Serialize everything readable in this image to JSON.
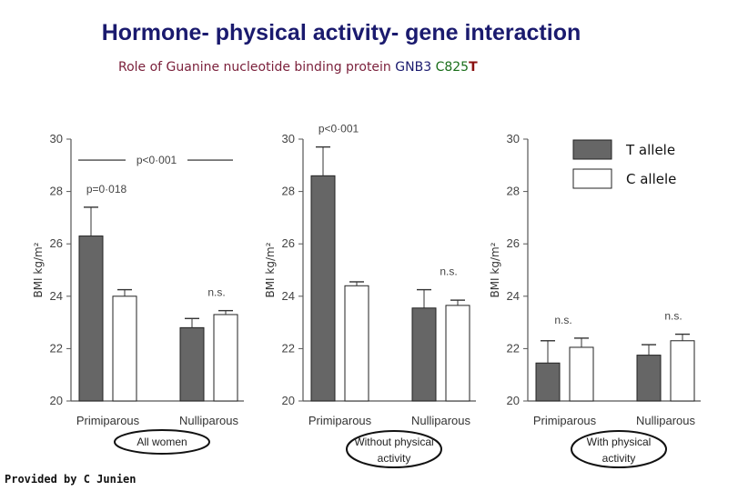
{
  "header": {
    "title": "Hormone- physical activity- gene interaction",
    "subtitle_part1": "Role of Guanine nucleotide binding protein",
    "subtitle_part2": "GNB3",
    "subtitle_part3": "C825",
    "subtitle_part4": "T"
  },
  "credit": "Provided by C Junien",
  "colors": {
    "t_allele": "#666666",
    "c_allele": "#ffffff",
    "outline": "#222222"
  },
  "legend": {
    "placement": "top-right",
    "items": [
      "T allele",
      "C allele"
    ]
  },
  "chart_data": [
    {
      "type": "bar",
      "ylabel": "BMI kg/m²",
      "ylim": [
        20,
        30
      ],
      "yticks": [
        20,
        22,
        24,
        26,
        28,
        30
      ],
      "categories": [
        "Primiparous",
        "Nulliparous"
      ],
      "group_label": "All women",
      "series": [
        {
          "name": "T allele",
          "values": [
            26.3,
            22.8
          ],
          "errors": [
            1.1,
            0.35
          ]
        },
        {
          "name": "C allele",
          "values": [
            24.0,
            23.3
          ],
          "errors": [
            0.25,
            0.15
          ]
        }
      ],
      "annotations": [
        {
          "text": "p<0·001",
          "type": "bracket"
        },
        {
          "text": "p=0·018",
          "category": 0
        },
        {
          "text": "n.s.",
          "category": 1
        }
      ]
    },
    {
      "type": "bar",
      "ylabel": "BMI kg/m²",
      "ylim": [
        20,
        30
      ],
      "yticks": [
        20,
        22,
        24,
        26,
        28,
        30
      ],
      "categories": [
        "Primiparous",
        "Nulliparous"
      ],
      "group_label": "Without physical activity",
      "series": [
        {
          "name": "T allele",
          "values": [
            28.6,
            23.55
          ],
          "errors": [
            1.1,
            0.7
          ]
        },
        {
          "name": "C allele",
          "values": [
            24.4,
            23.65
          ],
          "errors": [
            0.15,
            0.2
          ]
        }
      ],
      "annotations": [
        {
          "text": "p<0·001",
          "category": 0
        },
        {
          "text": "n.s.",
          "category": 1
        }
      ]
    },
    {
      "type": "bar",
      "ylabel": "BMI kg/m²",
      "ylim": [
        20,
        30
      ],
      "yticks": [
        20,
        22,
        24,
        26,
        28,
        30
      ],
      "categories": [
        "Primiparous",
        "Nulliparous"
      ],
      "group_label": "With physical activity",
      "series": [
        {
          "name": "T allele",
          "values": [
            21.45,
            21.75
          ],
          "errors": [
            0.85,
            0.4
          ]
        },
        {
          "name": "C allele",
          "values": [
            22.05,
            22.3
          ],
          "errors": [
            0.35,
            0.25
          ]
        }
      ],
      "annotations": [
        {
          "text": "n.s.",
          "category": 0
        },
        {
          "text": "n.s.",
          "category": 1
        }
      ]
    }
  ]
}
